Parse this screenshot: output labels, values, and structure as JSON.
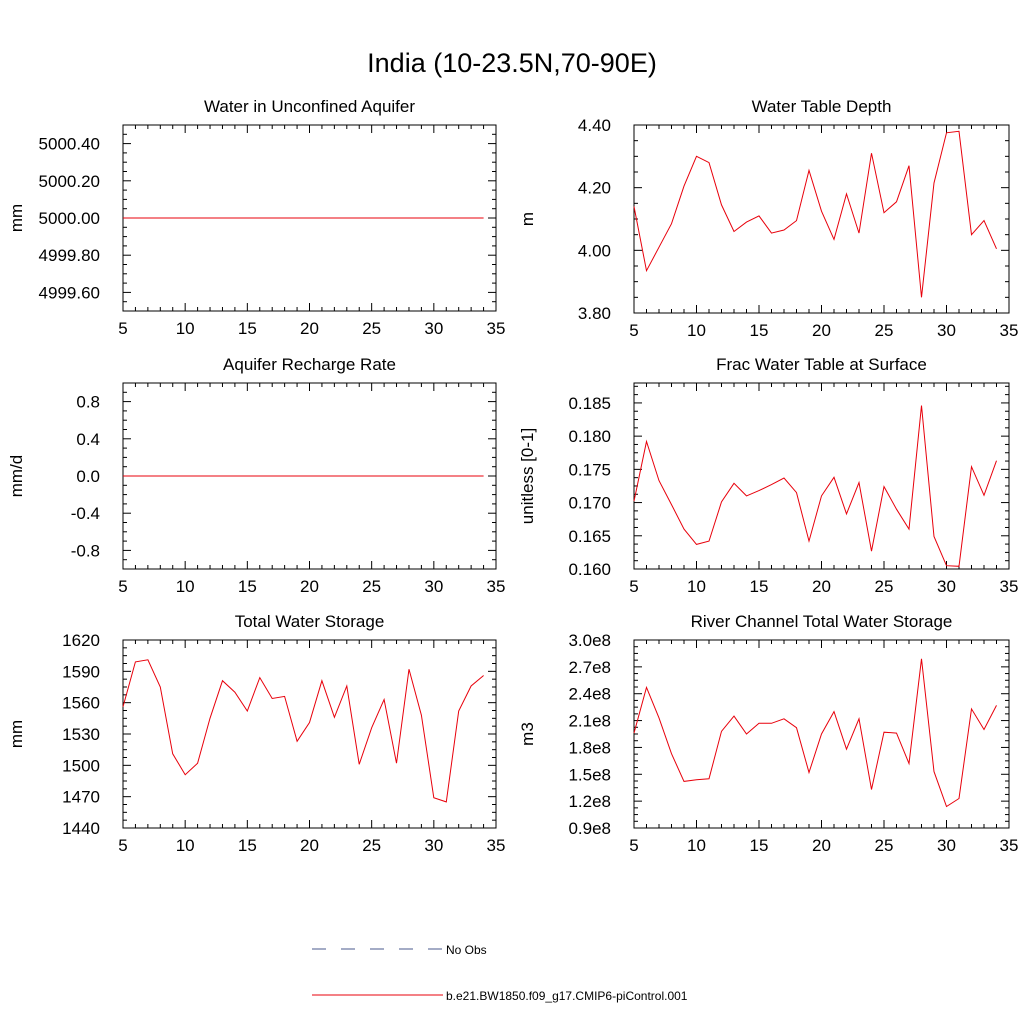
{
  "figure": {
    "title": "India (10-23.5N,70-90E)"
  },
  "legend": {
    "entries": [
      {
        "label": "No Obs",
        "style": "dashed",
        "color": "#4a5a8c"
      },
      {
        "label": "b.e21.BW1850.f09_g17.CMIP6-piControl.001",
        "style": "solid",
        "color": "#e8000b"
      }
    ]
  },
  "chart_data": [
    {
      "type": "line",
      "title": "Water in Unconfined Aquifer",
      "ylabel": "mm",
      "xlim": [
        5,
        35
      ],
      "ylim": [
        4999.5,
        5000.5
      ],
      "xticks": [
        5,
        10,
        15,
        20,
        25,
        30,
        35
      ],
      "xtick_labels": [
        "5",
        "10",
        "15",
        "20",
        "25",
        "30",
        "35"
      ],
      "yticks": [
        4999.6,
        4999.8,
        5000.0,
        5000.2,
        5000.4
      ],
      "ytick_labels": [
        "4999.60",
        "4999.80",
        "5000.00",
        "5000.20",
        "5000.40"
      ],
      "series": [
        {
          "color": "#e8000b",
          "x": [
            5,
            6,
            7,
            8,
            9,
            10,
            11,
            12,
            13,
            14,
            15,
            16,
            17,
            18,
            19,
            20,
            21,
            22,
            23,
            24,
            25,
            26,
            27,
            28,
            29,
            30,
            31,
            32,
            33,
            34
          ],
          "y": [
            5000,
            5000,
            5000,
            5000,
            5000,
            5000,
            5000,
            5000,
            5000,
            5000,
            5000,
            5000,
            5000,
            5000,
            5000,
            5000,
            5000,
            5000,
            5000,
            5000,
            5000,
            5000,
            5000,
            5000,
            5000,
            5000,
            5000,
            5000,
            5000,
            5000
          ]
        }
      ]
    },
    {
      "type": "line",
      "title": "Water Table Depth",
      "ylabel": "m",
      "xlim": [
        5,
        35
      ],
      "ylim": [
        3.8,
        4.4
      ],
      "xticks": [
        5,
        10,
        15,
        20,
        25,
        30,
        35
      ],
      "xtick_labels": [
        "5",
        "10",
        "15",
        "20",
        "25",
        "30",
        "35"
      ],
      "yticks": [
        3.8,
        4.0,
        4.2,
        4.4
      ],
      "ytick_labels": [
        "3.80",
        "4.00",
        "4.20",
        "4.40"
      ],
      "series": [
        {
          "color": "#e8000b",
          "x": [
            5,
            6,
            7,
            8,
            9,
            10,
            11,
            12,
            13,
            14,
            15,
            16,
            17,
            18,
            19,
            20,
            21,
            22,
            23,
            24,
            25,
            26,
            27,
            28,
            29,
            30,
            31,
            32,
            33,
            34
          ],
          "y": [
            4.14,
            3.935,
            4.01,
            4.085,
            4.205,
            4.3,
            4.28,
            4.145,
            4.06,
            4.09,
            4.11,
            4.055,
            4.065,
            4.095,
            4.255,
            4.125,
            4.035,
            4.18,
            4.055,
            4.31,
            4.12,
            4.155,
            4.27,
            3.85,
            4.215,
            4.375,
            4.38,
            4.05,
            4.095,
            4.005
          ]
        }
      ]
    },
    {
      "type": "line",
      "title": "Aquifer Recharge Rate",
      "ylabel": "mm/d",
      "xlim": [
        5,
        35
      ],
      "ylim": [
        -1.0,
        1.0
      ],
      "xticks": [
        5,
        10,
        15,
        20,
        25,
        30,
        35
      ],
      "xtick_labels": [
        "5",
        "10",
        "15",
        "20",
        "25",
        "30",
        "35"
      ],
      "yticks": [
        -0.8,
        -0.4,
        0.0,
        0.4,
        0.8
      ],
      "ytick_labels": [
        "-0.8",
        "-0.4",
        "0.0",
        "0.4",
        "0.8"
      ],
      "series": [
        {
          "color": "#e8000b",
          "x": [
            5,
            6,
            7,
            8,
            9,
            10,
            11,
            12,
            13,
            14,
            15,
            16,
            17,
            18,
            19,
            20,
            21,
            22,
            23,
            24,
            25,
            26,
            27,
            28,
            29,
            30,
            31,
            32,
            33,
            34
          ],
          "y": [
            0,
            0,
            0,
            0,
            0,
            0,
            0,
            0,
            0,
            0,
            0,
            0,
            0,
            0,
            0,
            0,
            0,
            0,
            0,
            0,
            0,
            0,
            0,
            0,
            0,
            0,
            0,
            0,
            0,
            0
          ]
        }
      ]
    },
    {
      "type": "line",
      "title": "Frac Water Table at Surface",
      "ylabel": "unitless [0-1]",
      "xlim": [
        5,
        35
      ],
      "ylim": [
        0.16,
        0.188
      ],
      "xticks": [
        5,
        10,
        15,
        20,
        25,
        30,
        35
      ],
      "xtick_labels": [
        "5",
        "10",
        "15",
        "20",
        "25",
        "30",
        "35"
      ],
      "yticks": [
        0.16,
        0.165,
        0.17,
        0.175,
        0.18,
        0.185
      ],
      "ytick_labels": [
        "0.160",
        "0.165",
        "0.170",
        "0.175",
        "0.180",
        "0.185"
      ],
      "series": [
        {
          "color": "#e8000b",
          "x": [
            5,
            6,
            7,
            8,
            9,
            10,
            11,
            12,
            13,
            14,
            15,
            16,
            17,
            18,
            19,
            20,
            21,
            22,
            23,
            24,
            25,
            26,
            27,
            28,
            29,
            30,
            31,
            32,
            33,
            34
          ],
          "y": [
            0.1702,
            0.1792,
            0.1733,
            0.1697,
            0.166,
            0.1637,
            0.1642,
            0.1701,
            0.1729,
            0.171,
            0.1718,
            0.1727,
            0.1737,
            0.1715,
            0.1642,
            0.171,
            0.1738,
            0.1683,
            0.173,
            0.1627,
            0.1724,
            0.169,
            0.166,
            0.1846,
            0.1649,
            0.1605,
            0.1604,
            0.1754,
            0.1711,
            0.1763
          ]
        }
      ]
    },
    {
      "type": "line",
      "title": "Total Water Storage",
      "ylabel": "mm",
      "xlim": [
        5,
        35
      ],
      "ylim": [
        1440,
        1620
      ],
      "xticks": [
        5,
        10,
        15,
        20,
        25,
        30,
        35
      ],
      "xtick_labels": [
        "5",
        "10",
        "15",
        "20",
        "25",
        "30",
        "35"
      ],
      "yticks": [
        1440,
        1470,
        1500,
        1530,
        1560,
        1590,
        1620
      ],
      "ytick_labels": [
        "1440",
        "1470",
        "1500",
        "1530",
        "1560",
        "1590",
        "1620"
      ],
      "series": [
        {
          "color": "#e8000b",
          "x": [
            5,
            6,
            7,
            8,
            9,
            10,
            11,
            12,
            13,
            14,
            15,
            16,
            17,
            18,
            19,
            20,
            21,
            22,
            23,
            24,
            25,
            26,
            27,
            28,
            29,
            30,
            31,
            32,
            33,
            34
          ],
          "y": [
            1556,
            1599,
            1601,
            1575,
            1511,
            1491,
            1502,
            1545,
            1581,
            1570,
            1552,
            1584,
            1564,
            1566,
            1523,
            1541,
            1581,
            1546,
            1576,
            1501,
            1536,
            1563,
            1502,
            1592,
            1548,
            1469,
            1465,
            1552,
            1576,
            1586
          ]
        }
      ]
    },
    {
      "type": "line",
      "title": "River Channel Total Water Storage",
      "ylabel": "m3",
      "xlim": [
        5,
        35
      ],
      "ylim": [
        90000000,
        300000000
      ],
      "xticks": [
        5,
        10,
        15,
        20,
        25,
        30,
        35
      ],
      "xtick_labels": [
        "5",
        "10",
        "15",
        "20",
        "25",
        "30",
        "35"
      ],
      "yticks": [
        90000000,
        120000000,
        150000000,
        180000000,
        210000000,
        240000000,
        270000000,
        300000000
      ],
      "ytick_labels": [
        "0.9e8",
        "1.2e8",
        "1.5e8",
        "1.8e8",
        "2.1e8",
        "2.4e8",
        "2.7e8",
        "3.0e8"
      ],
      "series": [
        {
          "color": "#e8000b",
          "x": [
            5,
            6,
            7,
            8,
            9,
            10,
            11,
            12,
            13,
            14,
            15,
            16,
            17,
            18,
            19,
            20,
            21,
            22,
            23,
            24,
            25,
            26,
            27,
            28,
            29,
            30,
            31,
            32,
            33,
            34
          ],
          "y": [
            196000000,
            247000000,
            213000000,
            173000000,
            142000000,
            144000000,
            145000000,
            198000000,
            215000000,
            195000000,
            207000000,
            207000000,
            212000000,
            202000000,
            152000000,
            195000000,
            220000000,
            178000000,
            212000000,
            133000000,
            197000000,
            196000000,
            162000000,
            279000000,
            153000000,
            114000000,
            123000000,
            223000000,
            200000000,
            227000000
          ]
        }
      ]
    }
  ]
}
